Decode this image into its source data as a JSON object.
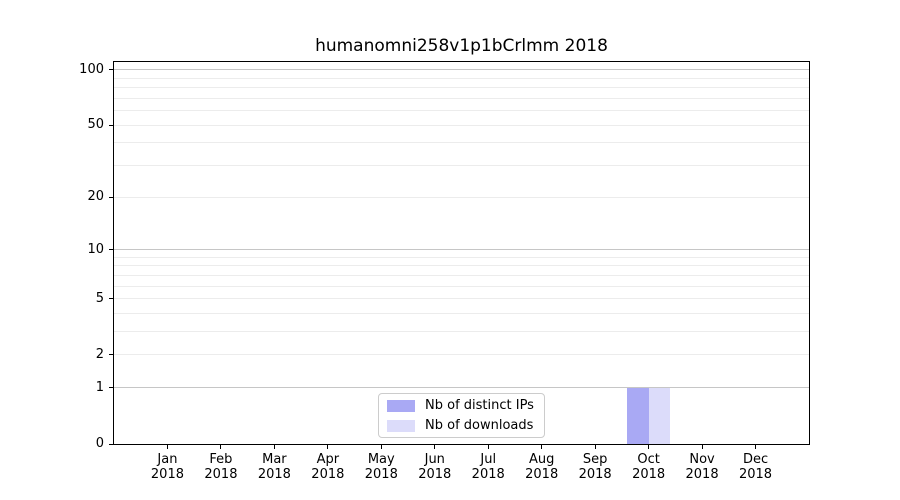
{
  "chart_data": {
    "type": "bar",
    "title": "humanomni258v1p1bCrlmm 2018",
    "x": {
      "months": [
        "Jan",
        "Feb",
        "Mar",
        "Apr",
        "May",
        "Jun",
        "Jul",
        "Aug",
        "Sep",
        "Oct",
        "Nov",
        "Dec"
      ],
      "year": "2018"
    },
    "series": [
      {
        "name": "Nb of distinct IPs",
        "color": "#a9a9f4",
        "values": [
          0,
          0,
          0,
          0,
          0,
          0,
          0,
          0,
          0,
          1,
          0,
          0
        ]
      },
      {
        "name": "Nb of downloads",
        "color": "#dcdcfa",
        "values": [
          0,
          0,
          0,
          0,
          0,
          0,
          0,
          0,
          0,
          1,
          0,
          0
        ]
      }
    ],
    "y_axis": {
      "scale": "log1p",
      "ticks": [
        0,
        1,
        2,
        5,
        10,
        20,
        50,
        100
      ],
      "major_gridlines": [
        1,
        10,
        100
      ],
      "minor_gridlines": [
        2,
        3,
        4,
        5,
        6,
        7,
        8,
        9,
        20,
        30,
        40,
        50,
        60,
        70,
        80,
        90
      ],
      "ylim": [
        0,
        110
      ]
    },
    "legend": {
      "items": [
        "Nb of distinct IPs",
        "Nb of downloads"
      ],
      "position": "lower center"
    },
    "bar_width_fraction": 0.4,
    "grid": true
  },
  "colors": {
    "background": "#ffffff",
    "axis": "#000000",
    "text": "#000000",
    "major_grid": "#c6c6c6",
    "minor_grid": "#ececec",
    "legend_border": "#cccccc"
  }
}
